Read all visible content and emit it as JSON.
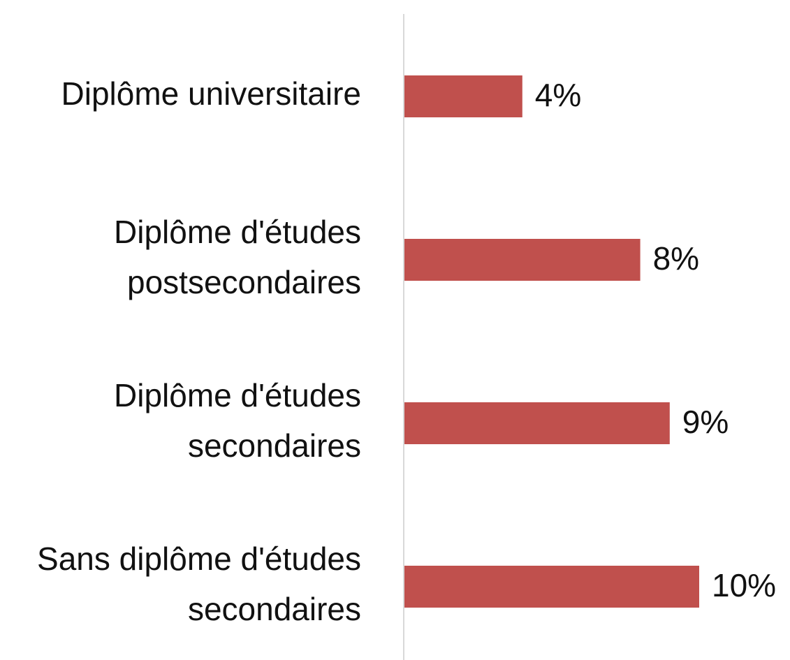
{
  "chart_data": {
    "type": "hbar",
    "categories": [
      "Diplôme universitaire",
      "Diplôme d'études postsecondaires",
      "Diplôme d'études secondaires",
      "Sans diplôme d'études secondaires"
    ],
    "values": [
      4,
      8,
      9,
      10
    ],
    "value_labels": [
      "4%",
      "8%",
      "9%",
      "10%"
    ],
    "color": "#c0504d"
  }
}
